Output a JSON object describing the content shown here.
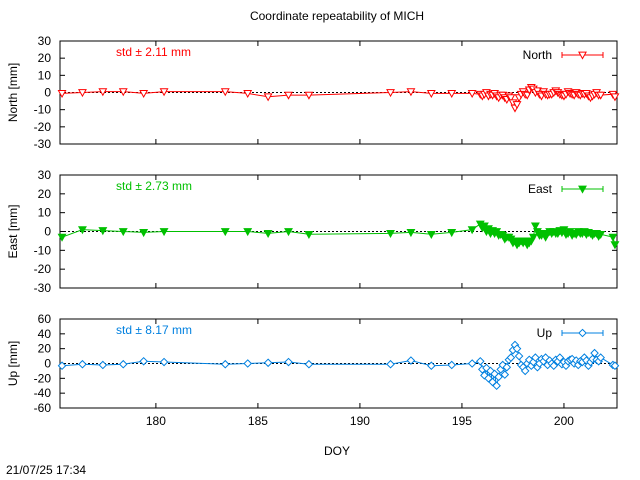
{
  "title": "Coordinate repeatability of MICH",
  "xlabel": "DOY",
  "timestamp": "21/07/25 17:34",
  "colors": {
    "north": "#ff0000",
    "east": "#00c000",
    "up": "#0080e0"
  },
  "chart_data": [
    {
      "type": "line",
      "panel": "north",
      "title": "Coordinate repeatability of MICH",
      "ylabel": "North [mm]",
      "legend": "North",
      "legend_placement": "top-right",
      "std_label": "std ± 2.11 mm",
      "marker": "open-triangle-down",
      "xlim": [
        175.3,
        202.6
      ],
      "ylim": [
        -30,
        30
      ],
      "yticks": [
        -30,
        -20,
        -10,
        0,
        10,
        20,
        30
      ],
      "xticks": [
        180,
        185,
        190,
        195,
        200
      ],
      "x": [
        175.4,
        176.4,
        177.4,
        178.4,
        179.4,
        180.4,
        183.4,
        184.5,
        185.5,
        186.5,
        187.5,
        191.5,
        192.5,
        193.5,
        194.5,
        195.5,
        195.9,
        196.0,
        196.1,
        196.2,
        196.3,
        196.4,
        196.5,
        196.6,
        196.7,
        196.8,
        196.9,
        197.0,
        197.1,
        197.2,
        197.3,
        197.4,
        197.5,
        197.6,
        197.7,
        197.8,
        197.9,
        198.0,
        198.1,
        198.2,
        198.3,
        198.4,
        198.5,
        198.6,
        198.7,
        198.8,
        198.9,
        199.0,
        199.1,
        199.2,
        199.3,
        199.4,
        199.5,
        199.6,
        199.7,
        199.8,
        199.9,
        200.0,
        200.1,
        200.2,
        200.3,
        200.4,
        200.5,
        200.6,
        200.7,
        200.8,
        200.9,
        201.0,
        201.1,
        201.2,
        201.3,
        201.4,
        201.5,
        201.6,
        201.7,
        201.8,
        202.4,
        202.5
      ],
      "y": [
        -0.5,
        0,
        0.5,
        0.5,
        -0.5,
        0.5,
        0.5,
        -0.5,
        -2.5,
        -1.5,
        -1.5,
        0,
        0.5,
        -0.5,
        -0.5,
        -0.5,
        -1,
        -2,
        -1,
        0,
        -2,
        -1,
        -1.5,
        -0.5,
        -2,
        -3,
        -1.5,
        -1.5,
        -3,
        -4,
        -2,
        -3,
        -6,
        -9,
        -7,
        -3,
        -1,
        0.5,
        -1,
        -1.5,
        1.5,
        3,
        2,
        0,
        1,
        -1,
        -2,
        0.5,
        -1,
        -1.5,
        -1,
        -1,
        0,
        1,
        0,
        -1,
        -1.5,
        -2,
        -1,
        0.5,
        -0.5,
        -1,
        -1.5,
        0,
        -1,
        -1.5,
        -0.5,
        -1,
        -0.5,
        -2,
        -3,
        -2,
        -1,
        0,
        -1.5,
        -1.5,
        -1,
        -2.5
      ]
    },
    {
      "type": "line",
      "panel": "east",
      "ylabel": "East [mm]",
      "legend": "East",
      "legend_placement": "top-right",
      "std_label": "std ± 2.73 mm",
      "marker": "filled-triangle-down",
      "xlim": [
        175.3,
        202.6
      ],
      "ylim": [
        -30,
        30
      ],
      "yticks": [
        -30,
        -20,
        -10,
        0,
        10,
        20,
        30
      ],
      "xticks": [
        180,
        185,
        190,
        195,
        200
      ],
      "x": [
        175.4,
        176.4,
        177.4,
        178.4,
        179.4,
        180.4,
        183.4,
        184.5,
        185.5,
        186.5,
        187.5,
        191.5,
        192.5,
        193.5,
        194.5,
        195.5,
        195.9,
        196.0,
        196.1,
        196.2,
        196.3,
        196.4,
        196.5,
        196.6,
        196.7,
        196.8,
        196.9,
        197.0,
        197.1,
        197.2,
        197.3,
        197.4,
        197.5,
        197.6,
        197.7,
        197.8,
        197.9,
        198.0,
        198.1,
        198.2,
        198.3,
        198.4,
        198.5,
        198.6,
        198.7,
        198.8,
        198.9,
        199.0,
        199.1,
        199.2,
        199.3,
        199.4,
        199.5,
        199.6,
        199.7,
        199.8,
        199.9,
        200.0,
        200.1,
        200.2,
        200.3,
        200.4,
        200.5,
        200.6,
        200.7,
        200.8,
        200.9,
        201.0,
        201.1,
        201.2,
        201.3,
        201.4,
        201.5,
        201.6,
        201.7,
        201.8,
        202.4,
        202.5
      ],
      "y": [
        -3,
        1,
        0.5,
        0,
        -0.5,
        0,
        0,
        0,
        -1,
        0,
        -1.5,
        -1,
        -0.5,
        -1.5,
        -0.5,
        1,
        4,
        2,
        3,
        0,
        1.5,
        -1,
        0.5,
        -1,
        0,
        -2,
        -1.5,
        -2,
        -4,
        -3,
        -3,
        -4,
        -6,
        -5,
        -7,
        -6,
        -5,
        -6,
        -5,
        -7,
        -6,
        -5,
        -3,
        3,
        0,
        -2,
        -2,
        -1,
        -3,
        -1,
        0,
        -1,
        0,
        -1,
        -1,
        0.5,
        -0.5,
        1,
        -1.5,
        -1,
        0,
        -2,
        -1,
        -1.5,
        0,
        -1,
        -1,
        0,
        -1.5,
        -0.5,
        -1,
        -2,
        -1,
        -1,
        -2.5,
        -1.5,
        -3,
        -7
      ]
    },
    {
      "type": "line",
      "panel": "up",
      "ylabel": "Up [mm]",
      "legend": "Up",
      "legend_placement": "top-right",
      "std_label": "std ± 8.17 mm",
      "marker": "open-diamond",
      "xlim": [
        175.3,
        202.6
      ],
      "ylim": [
        -60,
        60
      ],
      "yticks": [
        -60,
        -40,
        -20,
        0,
        20,
        40,
        60
      ],
      "xticks": [
        180,
        185,
        190,
        195,
        200
      ],
      "x": [
        175.4,
        176.4,
        177.4,
        178.4,
        179.4,
        180.4,
        183.4,
        184.5,
        185.5,
        186.5,
        187.5,
        191.5,
        192.5,
        193.5,
        194.5,
        195.5,
        195.9,
        196.0,
        196.1,
        196.2,
        196.3,
        196.4,
        196.5,
        196.6,
        196.7,
        196.8,
        196.9,
        197.0,
        197.1,
        197.2,
        197.3,
        197.4,
        197.5,
        197.6,
        197.7,
        197.8,
        197.9,
        198.0,
        198.1,
        198.2,
        198.3,
        198.4,
        198.5,
        198.6,
        198.7,
        198.8,
        198.9,
        199.0,
        199.1,
        199.2,
        199.3,
        199.4,
        199.5,
        199.6,
        199.7,
        199.8,
        199.9,
        200.0,
        200.1,
        200.2,
        200.3,
        200.4,
        200.5,
        200.6,
        200.7,
        200.8,
        200.9,
        201.0,
        201.1,
        201.2,
        201.3,
        201.4,
        201.5,
        201.6,
        201.7,
        201.8,
        202.4,
        202.5
      ],
      "y": [
        -3,
        -1,
        -2,
        -1,
        3,
        2,
        -1,
        0,
        1,
        2,
        -1,
        -1,
        4,
        -3,
        -2,
        0,
        3,
        -8,
        -16,
        -6,
        -20,
        -10,
        -25,
        -14,
        -30,
        -18,
        -8,
        -2,
        -15,
        -5,
        5,
        8,
        18,
        25,
        20,
        10,
        -2,
        -5,
        -10,
        0,
        5,
        -3,
        2,
        8,
        -5,
        0,
        6,
        3,
        8,
        -2,
        4,
        0,
        -3,
        5,
        3,
        8,
        -1,
        2,
        -3,
        3,
        5,
        6,
        0,
        4,
        -2,
        3,
        2,
        8,
        4,
        -3,
        2,
        6,
        14,
        5,
        3,
        8,
        -2,
        -3
      ]
    }
  ]
}
